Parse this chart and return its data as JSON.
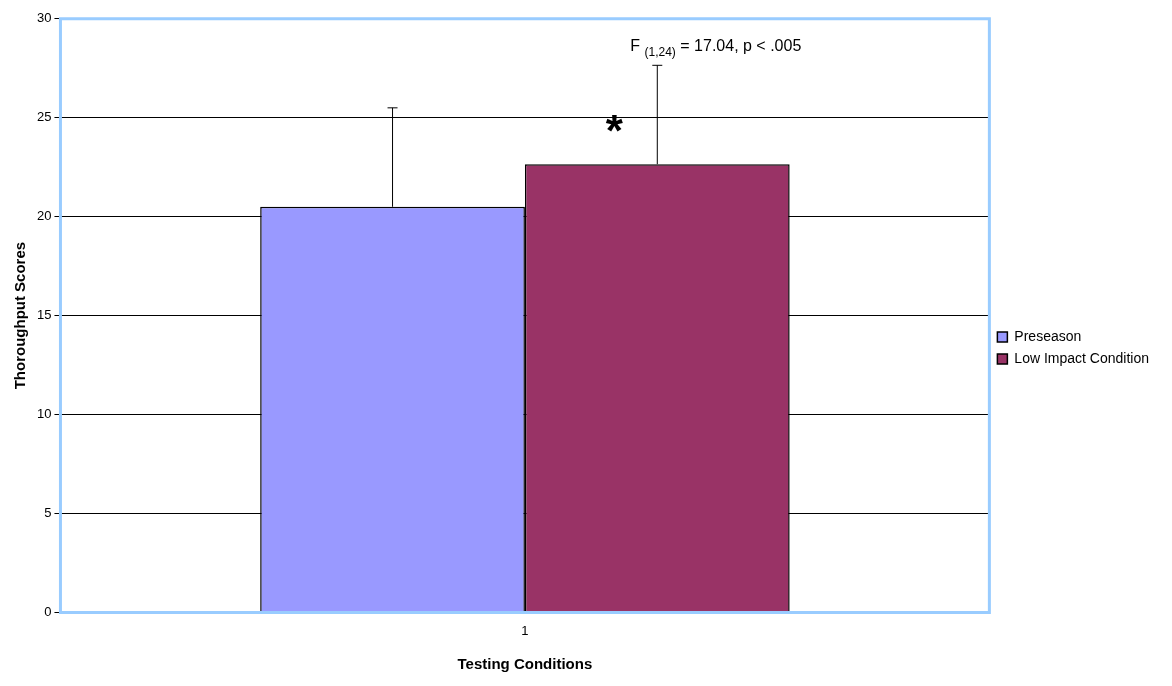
{
  "chart_data": {
    "type": "bar",
    "xlabel": "Testing Conditions",
    "ylabel": "Thoroughput Scores",
    "categories": [
      "1"
    ],
    "series": [
      {
        "name": "Preseason",
        "color": "#9999ff",
        "values": [
          20.5
        ],
        "errors": [
          5.0
        ]
      },
      {
        "name": "Low Impact Condition",
        "color": "#993366",
        "values": [
          22.65
        ],
        "errors": [
          5.0
        ]
      }
    ],
    "ylim": [
      0,
      30
    ],
    "yticks": [
      0,
      5,
      10,
      15,
      20,
      25,
      30
    ],
    "grid": "y",
    "legend": "right",
    "annotations": [
      "F $_{(1,24)}$ = 17.04, p < .005",
      "*"
    ]
  }
}
